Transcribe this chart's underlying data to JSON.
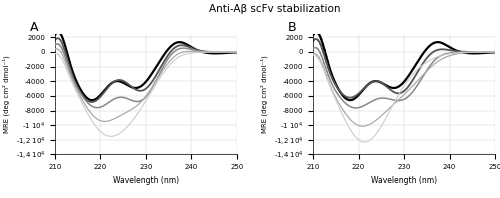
{
  "title": "Anti-Aβ scFv stabilization",
  "xlabel": "Wavelength (nm)",
  "ylabel": "MRE (deg cm² dmol⁻¹)",
  "xlim": [
    210,
    250
  ],
  "ylim": [
    -14000,
    2500
  ],
  "panel_A_colors": [
    "#000000",
    "#555555",
    "#888888",
    "#aaaaaa",
    "#cccccc"
  ],
  "panel_B_colors": [
    "#000000",
    "#555555",
    "#888888",
    "#aaaaaa",
    "#cccccc"
  ]
}
